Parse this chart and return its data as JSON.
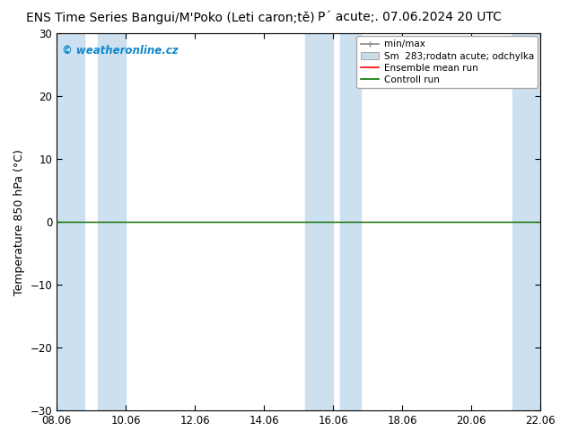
{
  "title_left": "ENS Time Series Bangui/M'Poko (Leti caron;tě)",
  "title_right": "P´ acute;. 07.06.2024 20 UTC",
  "ylabel": "Temperature 850 hPa (°C)",
  "ylim": [
    -30,
    30
  ],
  "yticks": [
    -30,
    -20,
    -10,
    0,
    10,
    20,
    30
  ],
  "xtick_labels": [
    "08.06",
    "10.06",
    "12.06",
    "14.06",
    "16.06",
    "18.06",
    "20.06",
    "22.06"
  ],
  "xtick_positions": [
    0,
    2,
    4,
    6,
    8,
    10,
    12,
    14
  ],
  "shaded_regions": [
    [
      0.0,
      0.8
    ],
    [
      1.2,
      2.0
    ],
    [
      7.2,
      8.0
    ],
    [
      8.2,
      8.8
    ],
    [
      13.2,
      14.0
    ]
  ],
  "shaded_color": "#cce0f0",
  "bg_color": "#ffffff",
  "plot_bg_color": "#ffffff",
  "control_run_color": "#007700",
  "ensemble_mean_color": "#ff0000",
  "watermark_text": "© weatheronline.cz",
  "watermark_color": "#1188cc",
  "legend_entries": [
    "min/max",
    "Sm  283;rodatn acute; odchylka",
    "Ensemble mean run",
    "Controll run"
  ],
  "title_fontsize": 10,
  "tick_fontsize": 8.5,
  "ylabel_fontsize": 9
}
